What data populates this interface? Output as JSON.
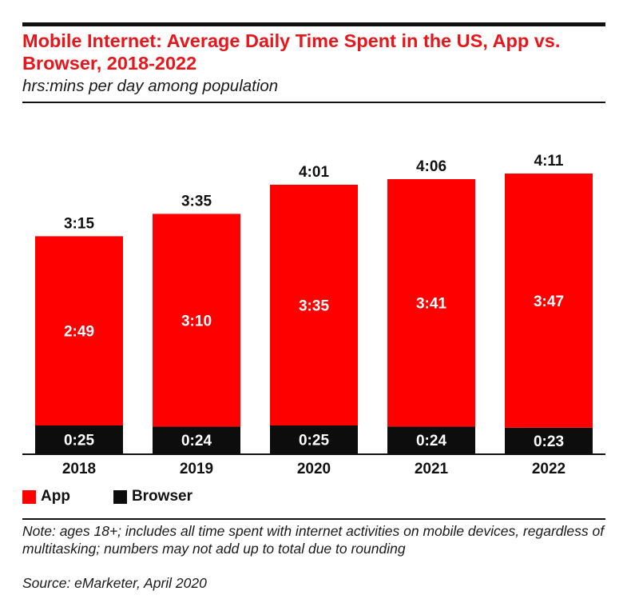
{
  "header": {
    "title": "Mobile Internet: Average Daily Time Spent in the US, App vs. Browser, 2018-2022",
    "subtitle": "hrs:mins per day among population"
  },
  "chart_data": {
    "type": "bar",
    "stacked": true,
    "categories": [
      "2018",
      "2019",
      "2020",
      "2021",
      "2022"
    ],
    "series": [
      {
        "name": "App",
        "color": "#ff0000",
        "values": [
          "2:49",
          "3:10",
          "3:35",
          "3:41",
          "3:47"
        ],
        "minutes": [
          169,
          190,
          215,
          221,
          227
        ]
      },
      {
        "name": "Browser",
        "color": "#0d0d0d",
        "values": [
          "0:25",
          "0:24",
          "0:25",
          "0:24",
          "0:23"
        ],
        "minutes": [
          25,
          24,
          25,
          24,
          23
        ]
      }
    ],
    "totals": [
      "3:15",
      "3:35",
      "4:01",
      "4:06",
      "4:11"
    ],
    "legend_position": "bottom-left",
    "grid": false
  },
  "footer": {
    "note": "Note: ages 18+; includes all time spent with internet activities on mobile devices, regardless of multitasking; numbers may not add up to total due to rounding",
    "source": "Source: eMarketer, April 2020"
  }
}
